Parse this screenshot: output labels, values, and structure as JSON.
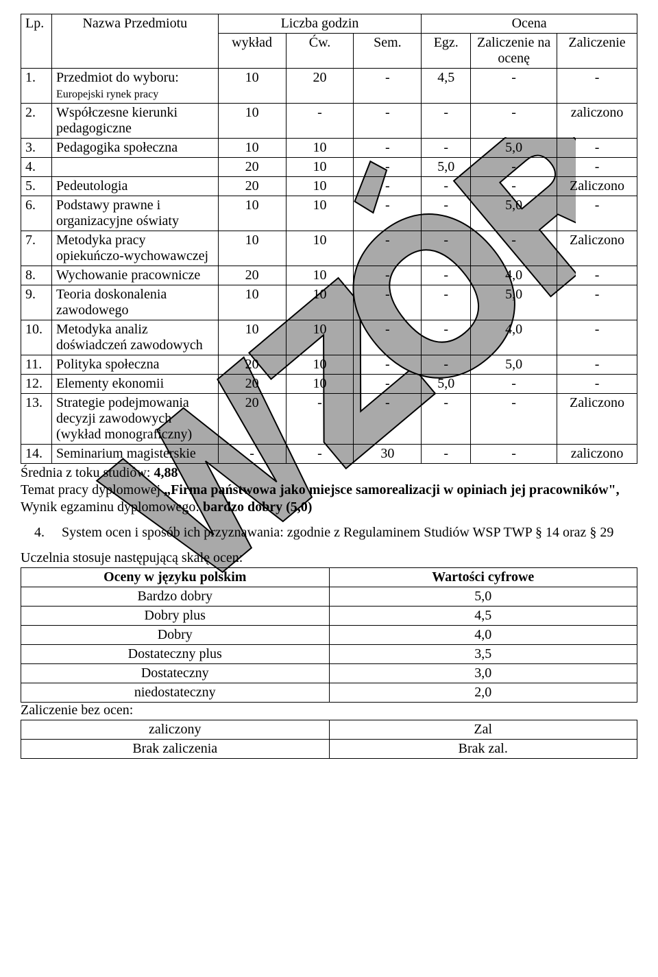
{
  "main_table": {
    "headers": {
      "lp": "Lp.",
      "nazwa": "Nazwa Przedmiotu",
      "liczba": "Liczba godzin",
      "ocena": "Ocena",
      "wyklad": "wykład",
      "cw": "Ćw.",
      "sem": "Sem.",
      "egz": "Egz.",
      "zal_ocena": "Zaliczenie na ocenę",
      "zal": "Zaliczenie"
    },
    "col_widths": {
      "lp": "5%",
      "nazwa": "27%",
      "wyklad": "11%",
      "cw": "11%",
      "sem": "11%",
      "egz": "8%",
      "zal_ocena": "14%",
      "zal": "13%"
    },
    "rows": [
      {
        "lp": "1.",
        "nazwa": "Przedmiot do wyboru:",
        "nazwa_small": "Europejski rynek pracy",
        "wyklad": "10",
        "cw": "20",
        "sem": "-",
        "egz": "4,5",
        "zal_ocena": "-",
        "zal": "-"
      },
      {
        "lp": "2.",
        "nazwa": "Współczesne kierunki pedagogiczne",
        "wyklad": "10",
        "cw": "-",
        "sem": "-",
        "egz": "-",
        "zal_ocena": "-",
        "zal": "zaliczono"
      },
      {
        "lp": "3.",
        "nazwa": "Pedagogika społeczna",
        "wyklad": "10",
        "cw": "10",
        "sem": "-",
        "egz": "-",
        "zal_ocena": "5,0",
        "zal": "-"
      },
      {
        "lp": "4.",
        "nazwa": "",
        "wyklad": "20",
        "cw": "10",
        "sem": "-",
        "egz": "5,0",
        "zal_ocena": "-",
        "zal": "-"
      },
      {
        "lp": "5.",
        "nazwa": "Pedeutologia",
        "wyklad": "20",
        "cw": "10",
        "sem": "-",
        "egz": "-",
        "zal_ocena": "-",
        "zal": "Zaliczono"
      },
      {
        "lp": "6.",
        "nazwa": "Podstawy prawne i organizacyjne oświaty",
        "wyklad": "10",
        "cw": "10",
        "sem": "-",
        "egz": "-",
        "zal_ocena": "5,0",
        "zal": "-"
      },
      {
        "lp": "7.",
        "nazwa": "Metodyka pracy opiekuńczo-wychowawczej",
        "wyklad": "10",
        "cw": "10",
        "sem": "-",
        "egz": "-",
        "zal_ocena": "-",
        "zal": "Zaliczono"
      },
      {
        "lp": "8.",
        "nazwa": "Wychowanie pracownicze",
        "wyklad": "20",
        "cw": "10",
        "sem": "-",
        "egz": "-",
        "zal_ocena": "4,0",
        "zal": "-"
      },
      {
        "lp": "9.",
        "nazwa": "Teoria doskonalenia zawodowego",
        "wyklad": "10",
        "cw": "10",
        "sem": "-",
        "egz": "-",
        "zal_ocena": "5,0",
        "zal": "-"
      },
      {
        "lp": "10.",
        "nazwa": "Metodyka analiz doświadczeń zawodowych",
        "wyklad": "10",
        "cw": "10",
        "sem": "-",
        "egz": "-",
        "zal_ocena": "4,0",
        "zal": "-"
      },
      {
        "lp": "11.",
        "nazwa": "Polityka społeczna",
        "wyklad": "20",
        "cw": "10",
        "sem": "-",
        "egz": "-",
        "zal_ocena": "5,0",
        "zal": "-"
      },
      {
        "lp": "12.",
        "nazwa": "Elementy ekonomii",
        "wyklad": "20",
        "cw": "10",
        "sem": "-",
        "egz": "5,0",
        "zal_ocena": "-",
        "zal": "-"
      },
      {
        "lp": "13.",
        "nazwa": "Strategie podejmowania decyzji zawodowych (wykład monograficzny)",
        "wyklad": "20",
        "cw": "-",
        "sem": "-",
        "egz": "-",
        "zal_ocena": "-",
        "zal": "Zaliczono"
      },
      {
        "lp": "14.",
        "nazwa": "Seminarium magisterskie",
        "wyklad": "-",
        "cw": "-",
        "sem": "30",
        "egz": "-",
        "zal_ocena": "-",
        "zal": "zaliczono"
      }
    ]
  },
  "after_text": {
    "avg_label": "Średnia z toku studiów: ",
    "avg_value": "4,88",
    "thesis_label": "Temat pracy dyplomowej ",
    "thesis_title": "„Firma państwowa jako miejsce samorealizacji w opiniach jej pracowników\",",
    "exam_label": "Wynik egzaminu dyplomowego: ",
    "exam_value": "bardzo dobry (5,0)",
    "item4_num": "4.",
    "item4": "System ocen i sposób ich przyznawania: zgodnie z Regulaminem Studiów WSP TWP § 14 oraz § 29",
    "scale_label": "Uczelnia stosuje następującą skalę ocen:"
  },
  "grades_table": {
    "header_pl": "Oceny w języku polskim",
    "header_val": "Wartości  cyfrowe",
    "rows": [
      {
        "pl": "Bardzo dobry",
        "val": "5,0"
      },
      {
        "pl": "Dobry plus",
        "val": "4,5"
      },
      {
        "pl": "Dobry",
        "val": "4,0"
      },
      {
        "pl": "Dostateczny plus",
        "val": "3,5"
      },
      {
        "pl": "Dostateczny",
        "val": "3,0"
      },
      {
        "pl": "niedostateczny",
        "val": "2,0"
      }
    ],
    "footer_label": "Zaliczenie bez ocen:",
    "footer_rows": [
      {
        "pl": "zaliczony",
        "val": "Zal"
      },
      {
        "pl": "Brak zaliczenia",
        "val": "Brak zal."
      }
    ]
  },
  "watermark": {
    "fill": "#a9a9a9",
    "stroke": "#000000",
    "stroke_width": 2
  }
}
